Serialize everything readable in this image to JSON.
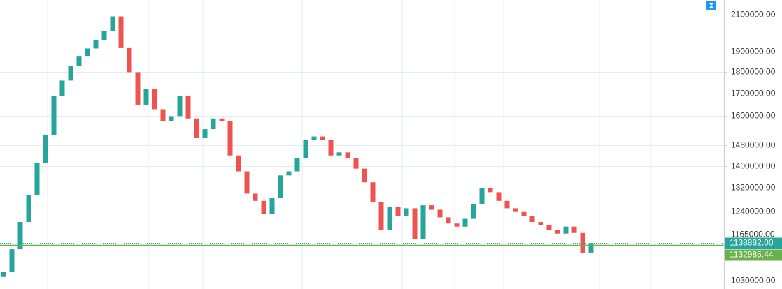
{
  "chart_data": {
    "type": "candlestick",
    "log_scale": true,
    "grid": true,
    "up_color": "#26a69a",
    "down_color": "#ef5350",
    "ylim": [
      1007000,
      2184000
    ],
    "yticks": [
      {
        "value": 2100000,
        "label": "2100000.00"
      },
      {
        "value": 1900000,
        "label": "1900000.00"
      },
      {
        "value": 1800000,
        "label": "1800000.00"
      },
      {
        "value": 1700000,
        "label": "1700000.00"
      },
      {
        "value": 1600000,
        "label": "1600000.00"
      },
      {
        "value": 1480000,
        "label": "1480000.00"
      },
      {
        "value": 1400000,
        "label": "1400000.00"
      },
      {
        "value": 1320000,
        "label": "1320000.00"
      },
      {
        "value": 1240000,
        "label": "1240000.00"
      },
      {
        "value": 1165000,
        "label": "1165000.00"
      },
      {
        "value": 1030000,
        "label": "1030000.00"
      }
    ],
    "open": [
      1040000,
      1055000,
      1120000,
      1205000,
      1295000,
      1410000,
      1520000,
      1690000,
      1760000,
      1830000,
      1880000,
      1918000,
      1960000,
      2010000,
      2090000,
      1920000,
      1800000,
      1650000,
      1720000,
      1630000,
      1580000,
      1600000,
      1690000,
      1590000,
      1510000,
      1545000,
      1590000,
      1580000,
      1440000,
      1380000,
      1300000,
      1275000,
      1230000,
      1285000,
      1365000,
      1380000,
      1430000,
      1500000,
      1515000,
      1500000,
      1440000,
      1452000,
      1430000,
      1390000,
      1340000,
      1270000,
      1180000,
      1255000,
      1225000,
      1250000,
      1150000,
      1260000,
      1245000,
      1220000,
      1200000,
      1190000,
      1215000,
      1265000,
      1320000,
      1305000,
      1275000,
      1250000,
      1240000,
      1225000,
      1205000,
      1195000,
      1180000,
      1168000,
      1190000,
      1170000,
      1110000
    ],
    "close": [
      1055000,
      1120000,
      1205000,
      1295000,
      1410000,
      1520000,
      1690000,
      1760000,
      1830000,
      1880000,
      1918000,
      1960000,
      2010000,
      2090000,
      1920000,
      1800000,
      1650000,
      1720000,
      1630000,
      1580000,
      1600000,
      1690000,
      1590000,
      1510000,
      1545000,
      1590000,
      1580000,
      1440000,
      1380000,
      1300000,
      1275000,
      1230000,
      1285000,
      1365000,
      1380000,
      1430000,
      1500000,
      1515000,
      1500000,
      1440000,
      1452000,
      1430000,
      1390000,
      1340000,
      1270000,
      1180000,
      1255000,
      1225000,
      1250000,
      1150000,
      1260000,
      1245000,
      1220000,
      1200000,
      1190000,
      1215000,
      1265000,
      1320000,
      1305000,
      1275000,
      1250000,
      1240000,
      1225000,
      1205000,
      1195000,
      1180000,
      1168000,
      1190000,
      1170000,
      1110000,
      1138882
    ],
    "price_lines": [
      {
        "value": 1138882,
        "label": "1138882.00",
        "color": "#26a69a",
        "style": "dotted"
      },
      {
        "value": 1132985.44,
        "label": "1132985.44",
        "color": "#6ab04c",
        "style": "solid"
      }
    ]
  }
}
